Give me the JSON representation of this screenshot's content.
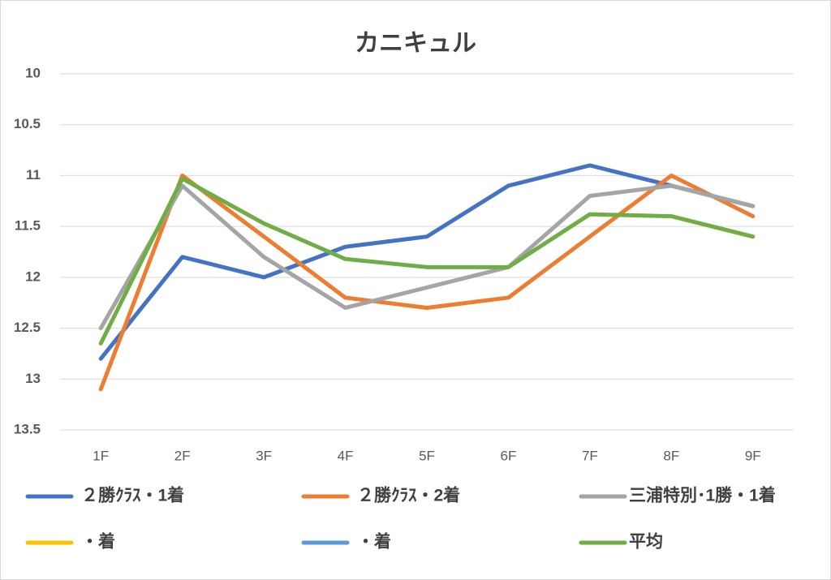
{
  "chart_data": {
    "type": "line",
    "title": "カニキュル",
    "categories": [
      "1F",
      "2F",
      "3F",
      "4F",
      "5F",
      "6F",
      "7F",
      "8F",
      "9F"
    ],
    "series": [
      {
        "name": "２勝ｸﾗｽ・1着",
        "color": "#4472c4",
        "values": [
          12.8,
          11.8,
          12.0,
          11.7,
          11.6,
          11.1,
          10.9,
          11.1,
          11.3
        ]
      },
      {
        "name": "２勝ｸﾗｽ・2着",
        "color": "#ed7d31",
        "values": [
          13.1,
          11.0,
          11.6,
          12.2,
          12.3,
          12.2,
          11.6,
          11.0,
          11.4
        ]
      },
      {
        "name": "三浦特別･1勝・1着",
        "color": "#a5a5a5",
        "values": [
          12.5,
          11.1,
          11.8,
          12.3,
          12.1,
          11.9,
          11.2,
          11.1,
          11.3
        ]
      },
      {
        "name": "・着",
        "color": "#ffc000",
        "values": [
          null,
          null,
          null,
          null,
          null,
          null,
          null,
          null,
          null
        ]
      },
      {
        "name": "・着",
        "color": "#5b9bd5",
        "values": [
          null,
          null,
          null,
          null,
          null,
          null,
          null,
          null,
          null
        ]
      },
      {
        "name": "平均",
        "color": "#70ad47",
        "values": [
          12.65,
          11.03,
          11.47,
          11.82,
          11.9,
          11.9,
          11.38,
          11.4,
          11.6
        ]
      }
    ],
    "ylim": [
      10,
      13.5
    ],
    "yticks": [
      10,
      10.5,
      11,
      11.5,
      12,
      12.5,
      13,
      13.5
    ],
    "y_inverted": true,
    "grid": true,
    "legend": "bottom"
  }
}
